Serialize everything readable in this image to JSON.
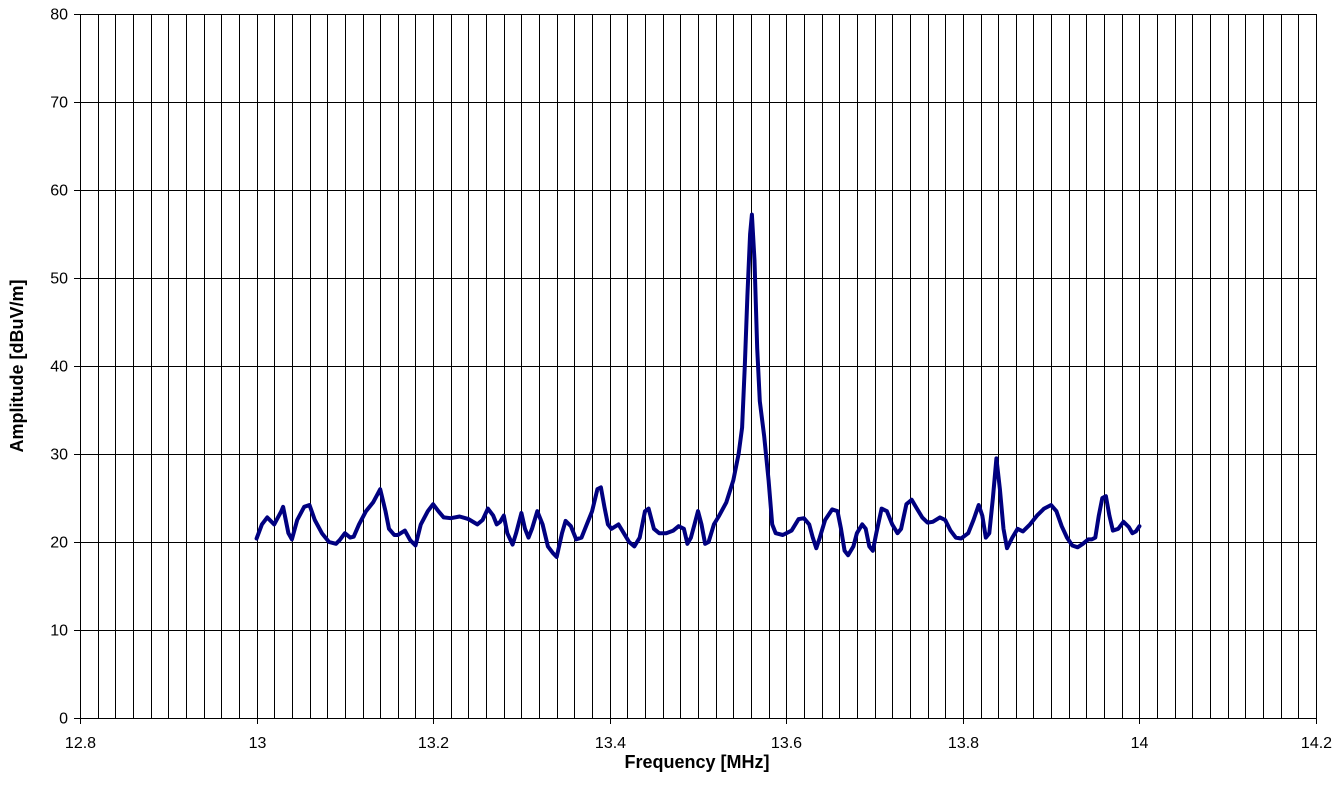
{
  "chart_data": {
    "type": "line",
    "title": "",
    "xlabel": "Frequency [MHz]",
    "ylabel": "Amplitude [dBuV/m]",
    "xlim": [
      12.8,
      14.2
    ],
    "ylim": [
      0,
      80
    ],
    "x_ticks": [
      "12.8",
      "13",
      "13.2",
      "13.4",
      "13.6",
      "13.8",
      "14",
      "14.2"
    ],
    "x_tick_values": [
      12.8,
      13.0,
      13.2,
      13.4,
      13.6,
      13.8,
      14.0,
      14.2
    ],
    "y_ticks": [
      "0",
      "10",
      "20",
      "30",
      "40",
      "50",
      "60",
      "70",
      "80"
    ],
    "y_tick_values": [
      0,
      10,
      20,
      30,
      40,
      50,
      60,
      70,
      80
    ],
    "x_minor_step": 0.02,
    "grid": true,
    "legend": "none",
    "series": [
      {
        "color": "#000080",
        "points": [
          [
            13.0,
            20.4
          ],
          [
            13.006,
            22.0
          ],
          [
            13.012,
            22.8
          ],
          [
            13.02,
            22.0
          ],
          [
            13.028,
            23.5
          ],
          [
            13.03,
            24.0
          ],
          [
            13.036,
            21.0
          ],
          [
            13.04,
            20.3
          ],
          [
            13.046,
            22.5
          ],
          [
            13.054,
            24.0
          ],
          [
            13.06,
            24.2
          ],
          [
            13.066,
            22.5
          ],
          [
            13.074,
            21.0
          ],
          [
            13.082,
            20.0
          ],
          [
            13.09,
            19.8
          ],
          [
            13.094,
            20.2
          ],
          [
            13.1,
            21.0
          ],
          [
            13.106,
            20.5
          ],
          [
            13.11,
            20.6
          ],
          [
            13.116,
            22.0
          ],
          [
            13.124,
            23.5
          ],
          [
            13.132,
            24.5
          ],
          [
            13.14,
            26.0
          ],
          [
            13.146,
            23.5
          ],
          [
            13.15,
            21.5
          ],
          [
            13.156,
            20.8
          ],
          [
            13.16,
            20.8
          ],
          [
            13.168,
            21.3
          ],
          [
            13.174,
            20.2
          ],
          [
            13.18,
            19.6
          ],
          [
            13.186,
            22.0
          ],
          [
            13.194,
            23.5
          ],
          [
            13.2,
            24.3
          ],
          [
            13.206,
            23.5
          ],
          [
            13.212,
            22.8
          ],
          [
            13.22,
            22.7
          ],
          [
            13.23,
            22.9
          ],
          [
            13.24,
            22.6
          ],
          [
            13.25,
            22.0
          ],
          [
            13.256,
            22.5
          ],
          [
            13.262,
            23.8
          ],
          [
            13.268,
            23.0
          ],
          [
            13.272,
            22.0
          ],
          [
            13.276,
            22.3
          ],
          [
            13.28,
            23.0
          ],
          [
            13.284,
            21.0
          ],
          [
            13.29,
            19.7
          ],
          [
            13.294,
            21.0
          ],
          [
            13.3,
            23.3
          ],
          [
            13.304,
            21.5
          ],
          [
            13.308,
            20.5
          ],
          [
            13.312,
            21.5
          ],
          [
            13.318,
            23.5
          ],
          [
            13.324,
            22.0
          ],
          [
            13.33,
            19.5
          ],
          [
            13.336,
            18.7
          ],
          [
            13.34,
            18.3
          ],
          [
            13.346,
            21.0
          ],
          [
            13.35,
            22.4
          ],
          [
            13.356,
            21.8
          ],
          [
            13.362,
            20.3
          ],
          [
            13.368,
            20.5
          ],
          [
            13.374,
            22.0
          ],
          [
            13.38,
            23.5
          ],
          [
            13.386,
            26.0
          ],
          [
            13.39,
            26.2
          ],
          [
            13.394,
            24.0
          ],
          [
            13.398,
            22.0
          ],
          [
            13.402,
            21.5
          ],
          [
            13.41,
            22.0
          ],
          [
            13.416,
            21.0
          ],
          [
            13.422,
            20.0
          ],
          [
            13.428,
            19.5
          ],
          [
            13.434,
            20.5
          ],
          [
            13.44,
            23.5
          ],
          [
            13.444,
            23.8
          ],
          [
            13.45,
            21.5
          ],
          [
            13.456,
            21.0
          ],
          [
            13.464,
            21.0
          ],
          [
            13.472,
            21.3
          ],
          [
            13.478,
            21.8
          ],
          [
            13.484,
            21.5
          ],
          [
            13.488,
            19.8
          ],
          [
            13.492,
            20.5
          ],
          [
            13.496,
            22.0
          ],
          [
            13.5,
            23.5
          ],
          [
            13.504,
            22.0
          ],
          [
            13.508,
            19.8
          ],
          [
            13.512,
            20.0
          ],
          [
            13.518,
            22.0
          ],
          [
            13.524,
            23.0
          ],
          [
            13.532,
            24.5
          ],
          [
            13.54,
            27.0
          ],
          [
            13.546,
            30.0
          ],
          [
            13.55,
            33.0
          ],
          [
            13.553,
            40.0
          ],
          [
            13.556,
            48.0
          ],
          [
            13.559,
            55.0
          ],
          [
            13.561,
            57.2
          ],
          [
            13.564,
            52.0
          ],
          [
            13.567,
            42.0
          ],
          [
            13.57,
            36.0
          ],
          [
            13.575,
            32.0
          ],
          [
            13.58,
            27.0
          ],
          [
            13.584,
            22.0
          ],
          [
            13.588,
            21.0
          ],
          [
            13.596,
            20.8
          ],
          [
            13.606,
            21.3
          ],
          [
            13.614,
            22.6
          ],
          [
            13.62,
            22.7
          ],
          [
            13.626,
            22.0
          ],
          [
            13.63,
            20.5
          ],
          [
            13.634,
            19.3
          ],
          [
            13.638,
            20.5
          ],
          [
            13.644,
            22.5
          ],
          [
            13.652,
            23.7
          ],
          [
            13.658,
            23.5
          ],
          [
            13.662,
            21.5
          ],
          [
            13.666,
            19.0
          ],
          [
            13.67,
            18.5
          ],
          [
            13.676,
            19.5
          ],
          [
            13.68,
            21.0
          ],
          [
            13.686,
            22.0
          ],
          [
            13.69,
            21.5
          ],
          [
            13.694,
            19.5
          ],
          [
            13.698,
            19.0
          ],
          [
            13.702,
            21.0
          ],
          [
            13.708,
            23.8
          ],
          [
            13.714,
            23.5
          ],
          [
            13.72,
            22.0
          ],
          [
            13.726,
            21.0
          ],
          [
            13.73,
            21.5
          ],
          [
            13.736,
            24.3
          ],
          [
            13.742,
            24.8
          ],
          [
            13.748,
            23.8
          ],
          [
            13.754,
            22.8
          ],
          [
            13.76,
            22.2
          ],
          [
            13.766,
            22.3
          ],
          [
            13.774,
            22.8
          ],
          [
            13.78,
            22.5
          ],
          [
            13.786,
            21.3
          ],
          [
            13.792,
            20.5
          ],
          [
            13.798,
            20.4
          ],
          [
            13.806,
            21.0
          ],
          [
            13.812,
            22.5
          ],
          [
            13.818,
            24.2
          ],
          [
            13.822,
            23.0
          ],
          [
            13.826,
            20.5
          ],
          [
            13.83,
            21.0
          ],
          [
            13.834,
            25.0
          ],
          [
            13.838,
            29.5
          ],
          [
            13.842,
            26.0
          ],
          [
            13.846,
            21.5
          ],
          [
            13.85,
            19.3
          ],
          [
            13.856,
            20.5
          ],
          [
            13.862,
            21.5
          ],
          [
            13.868,
            21.2
          ],
          [
            13.876,
            22.0
          ],
          [
            13.884,
            23.0
          ],
          [
            13.892,
            23.8
          ],
          [
            13.9,
            24.2
          ],
          [
            13.906,
            23.5
          ],
          [
            13.912,
            21.8
          ],
          [
            13.918,
            20.5
          ],
          [
            13.924,
            19.6
          ],
          [
            13.93,
            19.4
          ],
          [
            13.936,
            19.8
          ],
          [
            13.942,
            20.3
          ],
          [
            13.946,
            20.3
          ],
          [
            13.95,
            20.5
          ],
          [
            13.954,
            23.0
          ],
          [
            13.958,
            25.0
          ],
          [
            13.962,
            25.2
          ],
          [
            13.966,
            23.0
          ],
          [
            13.97,
            21.3
          ],
          [
            13.976,
            21.5
          ],
          [
            13.982,
            22.3
          ],
          [
            13.988,
            21.7
          ],
          [
            13.992,
            21.0
          ],
          [
            13.996,
            21.2
          ],
          [
            14.0,
            21.8
          ]
        ]
      }
    ]
  }
}
